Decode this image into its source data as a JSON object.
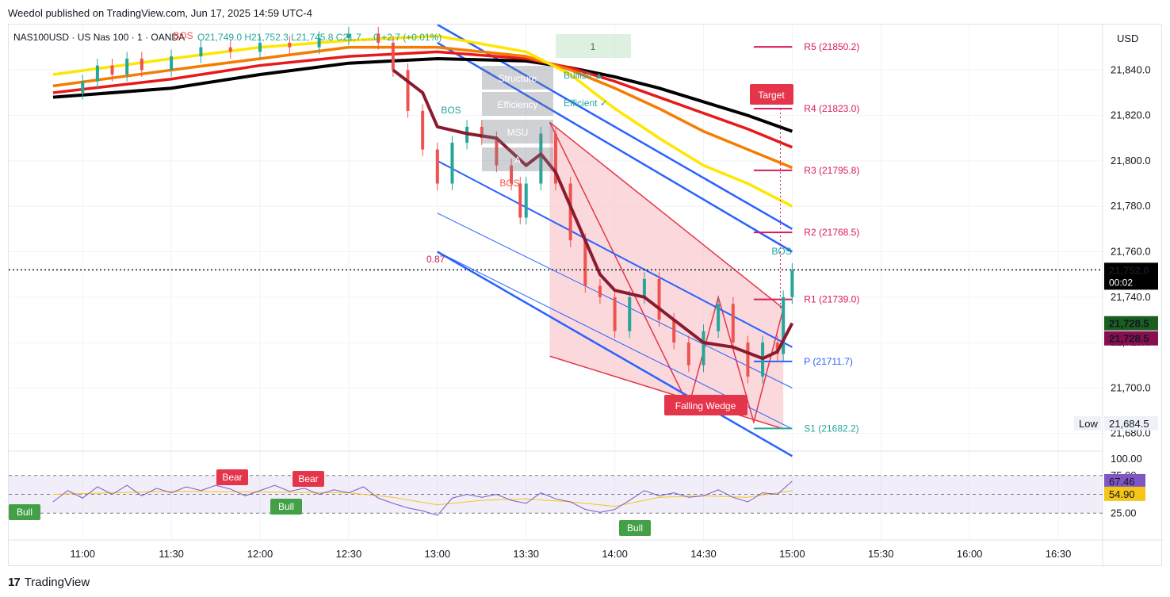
{
  "header": {
    "publisher": "Weedol published on TradingView.com, Jun 17, 2025 14:59 UTC-4"
  },
  "footer": {
    "logo": "17",
    "brand": "TradingView"
  },
  "colors": {
    "ema200": "#000000",
    "ema100": "#e61a1a",
    "ema50": "#f57c00",
    "ema20": "#ffe600",
    "kama": "#8b1a2e",
    "channel": "#2962ff",
    "wedge_fill": "#f8c8cc",
    "wedge_line": "#e5354b",
    "pivot_r": "#d81b60",
    "pivot_p": "#2962ff",
    "pivot_s": "#26a69a",
    "up": "#26a69a",
    "down": "#ef5350",
    "rsi": "#7e57c2",
    "rsi_ma": "#f5c518"
  },
  "chart_data": {
    "type": "candlestick",
    "symbol": "NAS100USD · US Nas 100 · 1 · OANDA",
    "ohlc_legend": {
      "o": "O21,749.0",
      "h": "H21,752.3",
      "l": "L21,745.8",
      "c": "C21,7….0",
      "change": "+2.7 (+0.01%)"
    },
    "currency": "USD",
    "ylim": [
      21675,
      21860
    ],
    "y_ticks": [
      "21,840.0",
      "21,820.0",
      "21,800.0",
      "21,780.0",
      "21,760.0",
      "21,740.0",
      "21,720.0",
      "21,700.0",
      "21,680.0"
    ],
    "x_ticks": [
      "11:00",
      "11:30",
      "12:00",
      "12:30",
      "13:00",
      "13:30",
      "14:00",
      "14:30",
      "15:00",
      "15:30",
      "16:00",
      "16:30"
    ],
    "last_price": {
      "value": "21,752.0",
      "countdown": "00:02"
    },
    "price_tags": [
      {
        "value": "21,728.5",
        "color": "#1b5e20"
      },
      {
        "value": "21,728.5",
        "color": "#880e4f"
      }
    ],
    "low": {
      "label": "Low",
      "value": "21,684.5"
    },
    "pivots": [
      {
        "name": "R5 (21850.2)",
        "value": 21850.2
      },
      {
        "name": "R4 (21823.0)",
        "value": 21823.0
      },
      {
        "name": "R3 (21795.8)",
        "value": 21795.8
      },
      {
        "name": "R2 (21768.5)",
        "value": 21768.5
      },
      {
        "name": "R1 (21739.0)",
        "value": 21739.0
      },
      {
        "name": "P (21711.7)",
        "value": 21711.7
      },
      {
        "name": "S1 (21682.2)",
        "value": 21682.2
      }
    ],
    "price_path": [
      [
        "10:55",
        21830
      ],
      [
        "11:00",
        21835
      ],
      [
        "11:05",
        21842
      ],
      [
        "11:10",
        21838
      ],
      [
        "11:15",
        21845
      ],
      [
        "11:20",
        21840
      ],
      [
        "11:30",
        21846
      ],
      [
        "11:40",
        21850
      ],
      [
        "11:50",
        21848
      ],
      [
        "12:00",
        21852
      ],
      [
        "12:10",
        21850
      ],
      [
        "12:20",
        21854
      ],
      [
        "12:30",
        21856
      ],
      [
        "12:40",
        21852
      ],
      [
        "12:45",
        21840
      ],
      [
        "12:50",
        21822
      ],
      [
        "12:55",
        21805
      ],
      [
        "13:00",
        21790
      ],
      [
        "13:05",
        21808
      ],
      [
        "13:10",
        21815
      ],
      [
        "13:15",
        21810
      ],
      [
        "13:20",
        21798
      ],
      [
        "13:25",
        21790
      ],
      [
        "13:28",
        21775
      ],
      [
        "13:30",
        21790
      ],
      [
        "13:35",
        21812
      ],
      [
        "13:40",
        21790
      ],
      [
        "13:45",
        21765
      ],
      [
        "13:50",
        21745
      ],
      [
        "13:55",
        21740
      ],
      [
        "14:00",
        21725
      ],
      [
        "14:05",
        21740
      ],
      [
        "14:10",
        21748
      ],
      [
        "14:15",
        21730
      ],
      [
        "14:20",
        21720
      ],
      [
        "14:25",
        21710
      ],
      [
        "14:30",
        21725
      ],
      [
        "14:35",
        21737
      ],
      [
        "14:40",
        21720
      ],
      [
        "14:45",
        21705
      ],
      [
        "14:50",
        21720
      ],
      [
        "14:55",
        21715
      ],
      [
        "14:57",
        21740
      ],
      [
        "15:00",
        21752
      ]
    ],
    "kama_path": [
      [
        "12:45",
        21840
      ],
      [
        "12:55",
        21830
      ],
      [
        "13:00",
        21815
      ],
      [
        "13:10",
        21812
      ],
      [
        "13:20",
        21810
      ],
      [
        "13:30",
        21798
      ],
      [
        "13:35",
        21803
      ],
      [
        "13:40",
        21795
      ],
      [
        "13:45",
        21780
      ],
      [
        "13:50",
        21765
      ],
      [
        "13:55",
        21750
      ],
      [
        "14:00",
        21743
      ],
      [
        "14:10",
        21740
      ],
      [
        "14:20",
        21730
      ],
      [
        "14:30",
        21720
      ],
      [
        "14:40",
        21718
      ],
      [
        "14:50",
        21713
      ],
      [
        "14:55",
        21716
      ],
      [
        "15:00",
        21728.5
      ]
    ],
    "moving_averages": [
      {
        "name": "EMA20",
        "color": "#ffe600",
        "path": [
          [
            "10:50",
            21838
          ],
          [
            "11:30",
            21845
          ],
          [
            "12:00",
            21850
          ],
          [
            "12:30",
            21853
          ],
          [
            "13:00",
            21855
          ],
          [
            "13:30",
            21848
          ],
          [
            "13:45",
            21838
          ],
          [
            "14:00",
            21823
          ],
          [
            "14:15",
            21810
          ],
          [
            "14:30",
            21798
          ],
          [
            "14:45",
            21790
          ],
          [
            "15:00",
            21780
          ]
        ]
      },
      {
        "name": "EMA50",
        "color": "#f57c00",
        "path": [
          [
            "10:50",
            21833
          ],
          [
            "11:30",
            21840
          ],
          [
            "12:00",
            21845
          ],
          [
            "12:30",
            21850
          ],
          [
            "13:00",
            21850
          ],
          [
            "13:30",
            21846
          ],
          [
            "13:45",
            21840
          ],
          [
            "14:00",
            21832
          ],
          [
            "14:15",
            21823
          ],
          [
            "14:30",
            21813
          ],
          [
            "14:45",
            21805
          ],
          [
            "15:00",
            21797
          ]
        ]
      },
      {
        "name": "EMA100",
        "color": "#e61a1a",
        "path": [
          [
            "10:50",
            21830
          ],
          [
            "11:30",
            21836
          ],
          [
            "12:00",
            21842
          ],
          [
            "12:30",
            21846
          ],
          [
            "13:00",
            21848
          ],
          [
            "13:30",
            21845
          ],
          [
            "13:45",
            21841
          ],
          [
            "14:00",
            21835
          ],
          [
            "14:15",
            21828
          ],
          [
            "14:30",
            21821
          ],
          [
            "14:45",
            21814
          ],
          [
            "15:00",
            21806
          ]
        ]
      },
      {
        "name": "EMA200",
        "color": "#000000",
        "path": [
          [
            "10:50",
            21828
          ],
          [
            "11:30",
            21832
          ],
          [
            "12:00",
            21838
          ],
          [
            "12:30",
            21843
          ],
          [
            "13:00",
            21845
          ],
          [
            "13:30",
            21844
          ],
          [
            "13:45",
            21841
          ],
          [
            "14:00",
            21837
          ],
          [
            "14:15",
            21832
          ],
          [
            "14:30",
            21826
          ],
          [
            "14:45",
            21820
          ],
          [
            "15:00",
            21813
          ]
        ]
      }
    ],
    "annotations": [
      {
        "text": "1",
        "kind": "box"
      },
      {
        "text": "Structure",
        "kind": "label"
      },
      {
        "text": "Bullish ▲",
        "kind": "label"
      },
      {
        "text": "Efficiency",
        "kind": "label"
      },
      {
        "text": "Efficient ✓",
        "kind": "label"
      },
      {
        "text": "MSU",
        "kind": "label"
      },
      {
        "text": "A",
        "kind": "label"
      },
      {
        "text": "BOS",
        "kind": "bos"
      },
      {
        "text": "BOS",
        "kind": "bos"
      },
      {
        "text": "BOS",
        "kind": "bos"
      },
      {
        "text": "BOS",
        "kind": "bos"
      },
      {
        "text": "0.87",
        "kind": "value"
      },
      {
        "text": "Target",
        "kind": "callout"
      },
      {
        "text": "Falling Wedge",
        "kind": "callout"
      }
    ],
    "rsi": {
      "ylim": [
        0,
        100
      ],
      "value": "67.46",
      "ma_value": "54.90",
      "ticks": [
        "100.00",
        "75.00",
        "25.00"
      ],
      "signals": [
        {
          "text": "Bull",
          "type": "bull"
        },
        {
          "text": "Bear",
          "type": "bear"
        },
        {
          "text": "Bull",
          "type": "bull"
        },
        {
          "text": "Bear",
          "type": "bear"
        },
        {
          "text": "Bull",
          "type": "bull"
        }
      ],
      "path": [
        [
          "10:50",
          40
        ],
        [
          "10:55",
          55
        ],
        [
          "11:00",
          45
        ],
        [
          "11:05",
          60
        ],
        [
          "11:10",
          50
        ],
        [
          "11:15",
          62
        ],
        [
          "11:20",
          48
        ],
        [
          "11:25",
          58
        ],
        [
          "11:30",
          52
        ],
        [
          "11:35",
          60
        ],
        [
          "11:40",
          55
        ],
        [
          "11:45",
          62
        ],
        [
          "11:50",
          57
        ],
        [
          "11:55",
          48
        ],
        [
          "12:00",
          55
        ],
        [
          "12:05",
          62
        ],
        [
          "12:10",
          54
        ],
        [
          "12:15",
          58
        ],
        [
          "12:20",
          50
        ],
        [
          "12:25",
          56
        ],
        [
          "12:30",
          52
        ],
        [
          "12:35",
          60
        ],
        [
          "12:40",
          45
        ],
        [
          "12:45",
          38
        ],
        [
          "12:50",
          32
        ],
        [
          "12:55",
          28
        ],
        [
          "13:00",
          22
        ],
        [
          "13:05",
          45
        ],
        [
          "13:10",
          50
        ],
        [
          "13:15",
          46
        ],
        [
          "13:20",
          50
        ],
        [
          "13:25",
          42
        ],
        [
          "13:30",
          38
        ],
        [
          "13:35",
          52
        ],
        [
          "13:40",
          44
        ],
        [
          "13:45",
          40
        ],
        [
          "13:50",
          30
        ],
        [
          "13:55",
          26
        ],
        [
          "14:00",
          30
        ],
        [
          "14:05",
          42
        ],
        [
          "14:10",
          55
        ],
        [
          "14:15",
          48
        ],
        [
          "14:20",
          52
        ],
        [
          "14:25",
          46
        ],
        [
          "14:30",
          48
        ],
        [
          "14:35",
          56
        ],
        [
          "14:40",
          46
        ],
        [
          "14:45",
          40
        ],
        [
          "14:50",
          52
        ],
        [
          "14:55",
          50
        ],
        [
          "15:00",
          67.46
        ]
      ],
      "ma_path": [
        [
          "10:50",
          50
        ],
        [
          "11:30",
          54
        ],
        [
          "12:00",
          53
        ],
        [
          "12:30",
          52
        ],
        [
          "12:45",
          46
        ],
        [
          "13:00",
          36
        ],
        [
          "13:15",
          42
        ],
        [
          "13:30",
          44
        ],
        [
          "13:45",
          40
        ],
        [
          "14:00",
          34
        ],
        [
          "14:15",
          46
        ],
        [
          "14:30",
          48
        ],
        [
          "14:45",
          46
        ],
        [
          "15:00",
          54.9
        ]
      ]
    }
  }
}
